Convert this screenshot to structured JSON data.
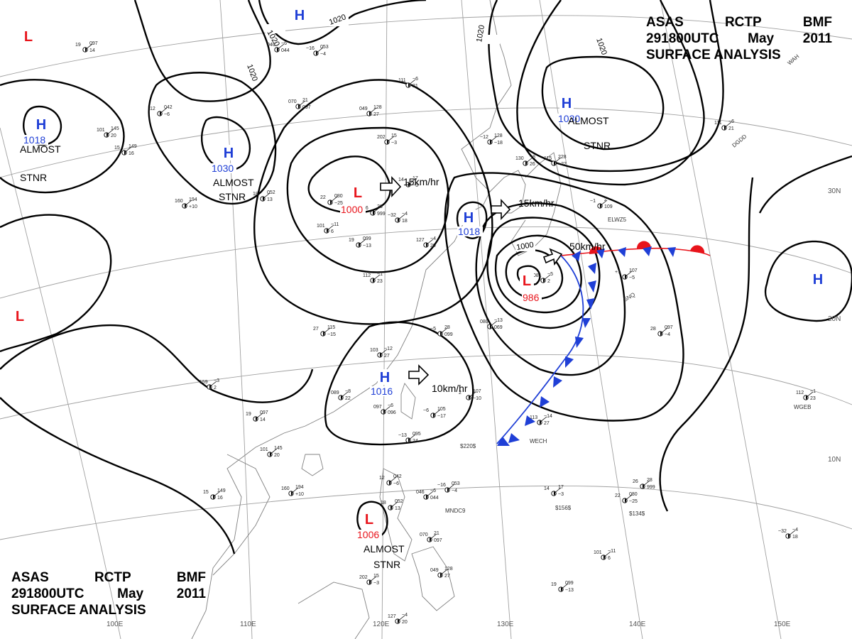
{
  "header": {
    "line1": [
      "ASAS",
      "RCTP",
      "BMF"
    ],
    "line2": [
      "291800UTC",
      "May",
      "2011"
    ],
    "line3": "SURFACE  ANALYSIS"
  },
  "colors": {
    "high": "#1f3fd6",
    "low": "#e8141b",
    "pressure_value_high": "#1f3fd6",
    "pressure_value_low": "#e8141b",
    "cold_front": "#1f3fd6",
    "warm_front": "#e8141b",
    "isobar": "#000000",
    "grid": "#9a9a9a",
    "coast": "#808080"
  },
  "isobar_labels": [
    "1020",
    "1020",
    "1020",
    "1020",
    "1000"
  ],
  "systems": [
    {
      "type": "H",
      "value": "1030",
      "note": "ALMOST STNR"
    },
    {
      "type": "H",
      "value": "1030",
      "note": "ALMOST STNR"
    },
    {
      "type": "H",
      "value": "1018",
      "note": "ALMOST STNR"
    },
    {
      "type": "H",
      "value": "1018",
      "note": ""
    },
    {
      "type": "H",
      "value": "1016",
      "note": ""
    },
    {
      "type": "H",
      "value": "",
      "note": ""
    },
    {
      "type": "H",
      "value": "",
      "note": ""
    },
    {
      "type": "L",
      "value": "1000",
      "note": ""
    },
    {
      "type": "L",
      "value": "986",
      "note": ""
    },
    {
      "type": "L",
      "value": "1006",
      "note": "ALMOST STNR"
    },
    {
      "type": "L",
      "value": "",
      "note": ""
    },
    {
      "type": "L",
      "value": "",
      "note": ""
    }
  ],
  "motion_labels": [
    "15km/hr",
    "15km/hr",
    "50km/hr",
    "10km/hr"
  ],
  "longitude_labels": [
    "100E",
    "110E",
    "120E",
    "130E",
    "140E",
    "150E"
  ],
  "latitude_labels": [
    "30N",
    "20N",
    "10N"
  ],
  "station_ids": [
    "WAH",
    "DGDD",
    "ELWZ5",
    "SNQ",
    "WGEB",
    "WECH",
    "MNDC9",
    "$220$",
    "$156$",
    "$134$"
  ],
  "station_numbers": [
    "19",
    "097",
    "14",
    "101",
    "145",
    "20",
    "15",
    "149",
    "16",
    "160",
    "194",
    "+10",
    "12",
    "042",
    "~6",
    "18",
    "052",
    "13",
    "046",
    "~6",
    "044",
    "~16",
    "053",
    "~4",
    "070",
    "21",
    "097",
    "049",
    "128",
    "27",
    "202",
    "15",
    "~3",
    "14",
    "17",
    "~3",
    "22",
    "080",
    "~25",
    "26",
    "28",
    "999",
    "~32",
    "~4",
    "18",
    "101",
    "~11",
    "6",
    "19",
    "099",
    "~13",
    "127",
    "~4",
    "20",
    "112",
    "~1",
    "23",
    "111",
    "~6",
    "21",
    "~12",
    "128",
    "~18",
    "130",
    "~8",
    "26",
    "115",
    "228",
    "~22",
    "~1",
    "2",
    "109",
    "+1",
    "107",
    "~5",
    "28",
    "097",
    "~4",
    "081",
    "~5",
    "2",
    "080",
    "~13",
    "069",
    "~5",
    "28",
    "099",
    "27",
    "115",
    "~15",
    "103",
    "~12",
    "27",
    "089",
    "~8",
    "22",
    "097",
    "~6",
    "096",
    "~13",
    "095",
    "24",
    "~6",
    "105",
    "~17",
    "2",
    "107",
    "~10",
    "113",
    "~14",
    "27",
    "159",
    "~3",
    "2"
  ]
}
